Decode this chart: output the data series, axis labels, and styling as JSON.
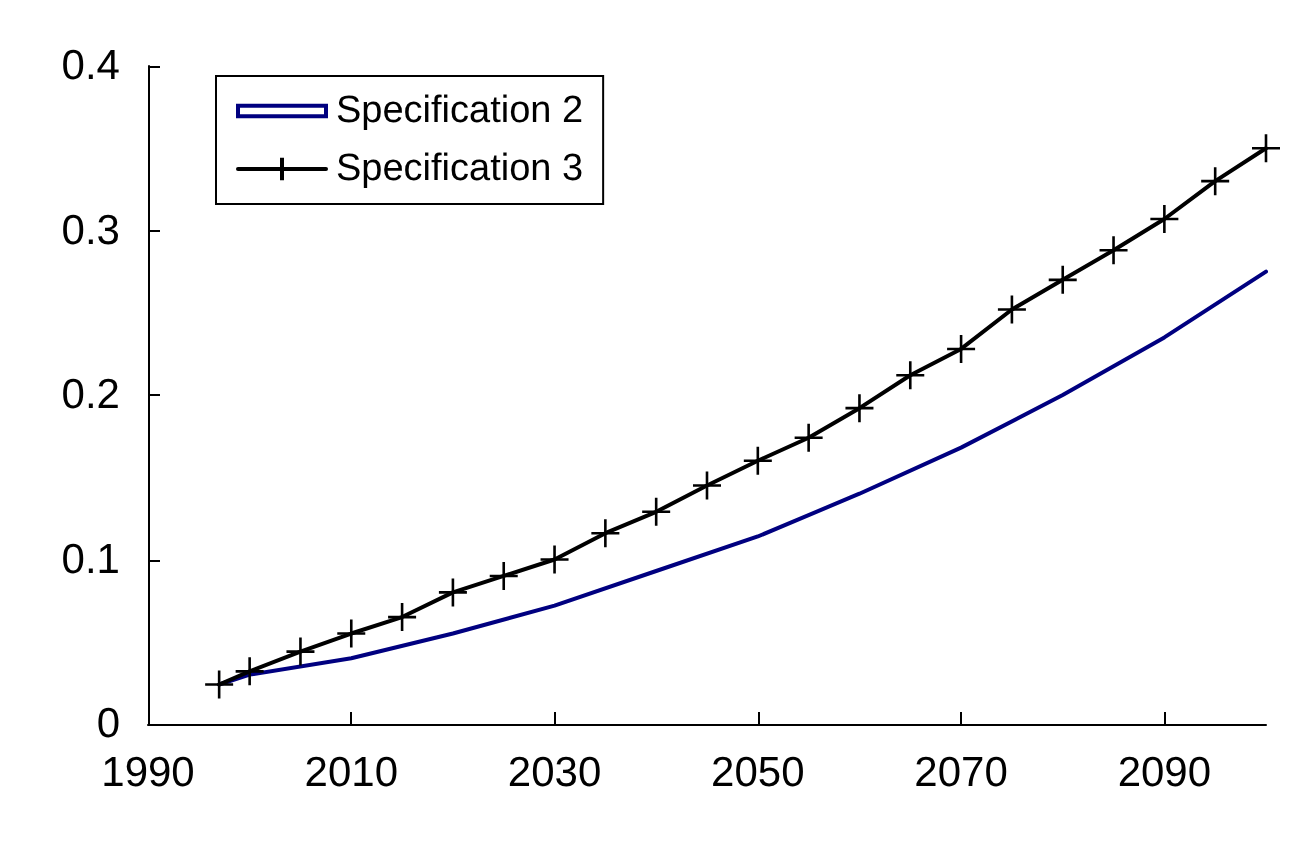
{
  "chart_data": {
    "type": "line",
    "xlim": [
      1990,
      2100
    ],
    "xticks": [
      1990,
      2010,
      2030,
      2050,
      2070,
      2090
    ],
    "ylim": [
      0,
      0.4
    ],
    "yticks": [
      0,
      0.1,
      0.2,
      0.3,
      0.4
    ],
    "grid": false,
    "legend": "top left",
    "series": [
      {
        "name": "Specification 2",
        "color": "#000080",
        "marker": "none",
        "x": [
          1997,
          2000,
          2010,
          2020,
          2030,
          2040,
          2050,
          2060,
          2070,
          2080,
          2090,
          2100
        ],
        "values": [
          0.024,
          0.03,
          0.04,
          0.055,
          0.072,
          0.093,
          0.114,
          0.14,
          0.168,
          0.2,
          0.235,
          0.275
        ]
      },
      {
        "name": "Specification 3",
        "color": "#000000",
        "marker": "cross",
        "x": [
          1997,
          2000,
          2005,
          2010,
          2015,
          2020,
          2025,
          2030,
          2035,
          2040,
          2045,
          2050,
          2055,
          2060,
          2065,
          2070,
          2075,
          2080,
          2085,
          2090,
          2095,
          2100
        ],
        "values": [
          0.024,
          0.032,
          0.044,
          0.055,
          0.065,
          0.08,
          0.09,
          0.1,
          0.116,
          0.129,
          0.145,
          0.16,
          0.174,
          0.192,
          0.212,
          0.228,
          0.252,
          0.27,
          0.288,
          0.307,
          0.33,
          0.35
        ]
      }
    ]
  }
}
